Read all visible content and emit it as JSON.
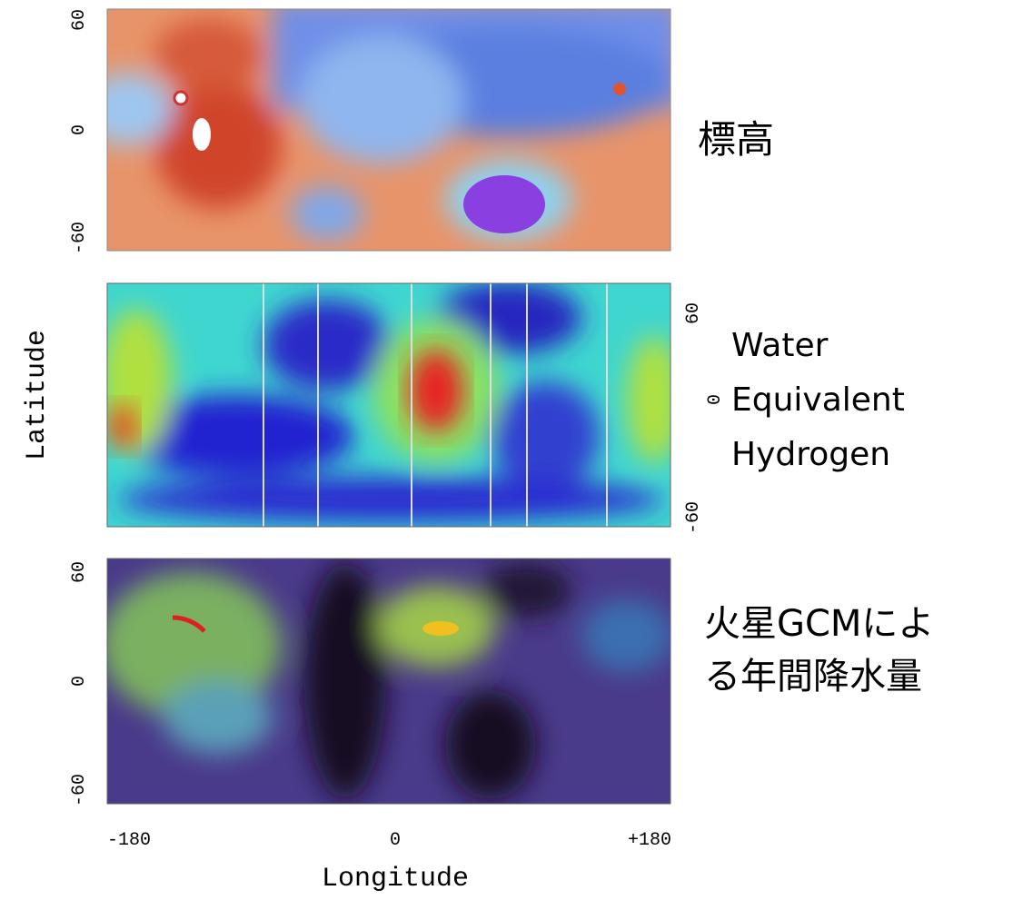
{
  "y_axis_label": "Latitude",
  "x_axis_label": "Longitude",
  "x_ticks": [
    "-180",
    "0",
    "+180"
  ],
  "panels": [
    {
      "label_lines": [
        "標高"
      ],
      "y_ticks": [
        "60",
        "0",
        "-60"
      ]
    },
    {
      "label_lines": [
        "Water",
        "Equivalent",
        "Hydrogen"
      ],
      "y_ticks": [
        "60",
        "0",
        "-60"
      ]
    },
    {
      "label_lines": [
        "火星GCMによ",
        "る年間降水量"
      ],
      "y_ticks": [
        "60",
        "0",
        "-60"
      ]
    }
  ]
}
